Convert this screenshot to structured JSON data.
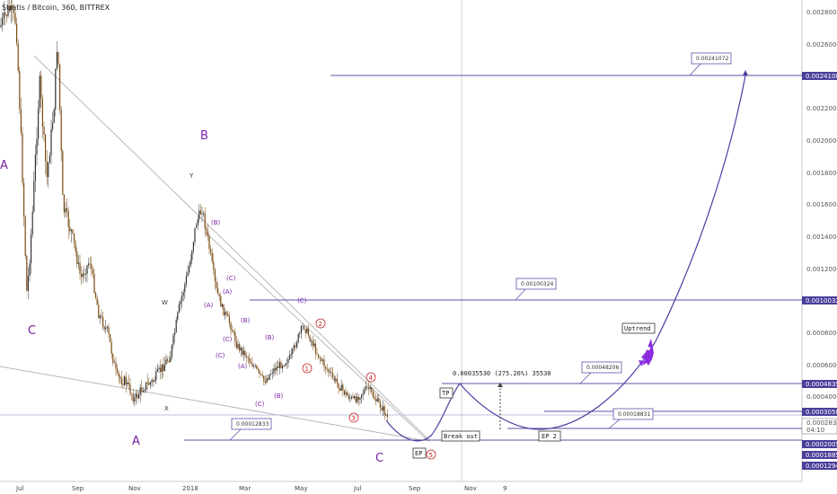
{
  "chart_data": {
    "type": "candlestick",
    "title": "Stratis / Bitcoin, 360, BITTREX",
    "y_ticks": [
      "0.00280000",
      "0.00260000",
      "0.00241088",
      "0.00220000",
      "0.00200000",
      "0.00180000",
      "0.00160000",
      "0.00140000",
      "0.00120000",
      "0.00100324",
      "0.00080000",
      "0.00060000",
      "0.00048353",
      "0.00040000",
      "0.00030504",
      "0.00028330",
      "04:10",
      "0.00020053",
      "0.00018856",
      "0.00012949"
    ],
    "x_ticks": [
      "Jul",
      "Sep",
      "Nov",
      "2018",
      "Mar",
      "May",
      "Jul",
      "Sep",
      "Nov",
      "9"
    ],
    "ylim": [
      0.0001,
      0.0029
    ],
    "highlighted_prices": [
      "0.00241088",
      "0.00100324",
      "0.00048353",
      "0.00030504",
      "0.00020053",
      "0.00018856",
      "0.00012949"
    ],
    "last_price": "0.00028330",
    "countdown": "04:10",
    "wave_labels": {
      "big": [
        "A",
        "C",
        "B",
        "A",
        "C"
      ],
      "gray": [
        "Y",
        "W",
        "X"
      ],
      "small": [
        "(B)",
        "(C)",
        "(A)",
        "(A)",
        "(B)",
        "(C)",
        "(B)",
        "(A)",
        "(C)",
        "(B)",
        "(C)"
      ],
      "red": [
        "1",
        "2",
        "3",
        "4",
        "5"
      ]
    },
    "callouts": [
      "0.00241072",
      "0.00100324",
      "0.00048206",
      "0.00018831",
      "0.00012833"
    ],
    "annotations": {
      "tp": "TP",
      "ep": "EP",
      "ep2": "EP 2",
      "breakout": "Break out",
      "uptrend": "Uptrend",
      "measure": "0.00035530 (275.26%) 35530"
    },
    "colors": {
      "candle_up": "#333333",
      "candle_down": "#7a4a10",
      "projection": "#4b3fa0",
      "level_line": "#5a55a8",
      "wave_purple": "#7a1fa2",
      "wave_red": "#c62828",
      "price_tag": "#4a3f9a",
      "rocket": "#8a2be2"
    }
  }
}
